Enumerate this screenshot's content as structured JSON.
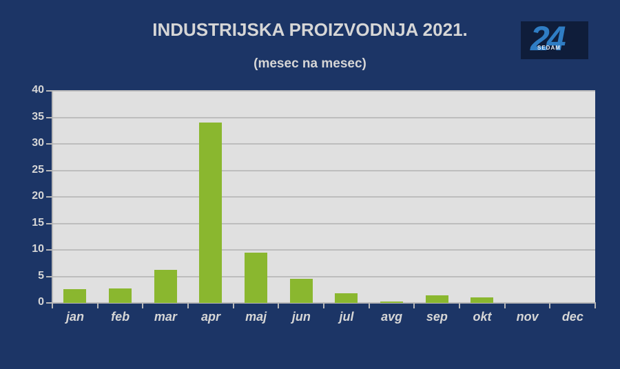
{
  "chart_data": {
    "type": "bar",
    "title": "INDUSTRIJSKA PROIZVODNJA 2021.",
    "subtitle": "(mesec na mesec)",
    "xlabel": "",
    "ylabel": "",
    "categories": [
      "jan",
      "feb",
      "mar",
      "apr",
      "maj",
      "jun",
      "jul",
      "avg",
      "sep",
      "okt",
      "nov",
      "dec"
    ],
    "values": [
      2.6,
      2.7,
      6.2,
      34.0,
      9.5,
      4.5,
      1.8,
      0.2,
      1.4,
      1.0,
      0,
      0
    ],
    "ylim": [
      0,
      40
    ],
    "yticks": [
      "0",
      "5",
      "10",
      "15",
      "20",
      "25",
      "30",
      "35",
      "40"
    ],
    "grid": true,
    "legend": "none",
    "bar_color": "#8ab72f"
  },
  "logo": {
    "number": "24",
    "text": "SEDAM"
  }
}
